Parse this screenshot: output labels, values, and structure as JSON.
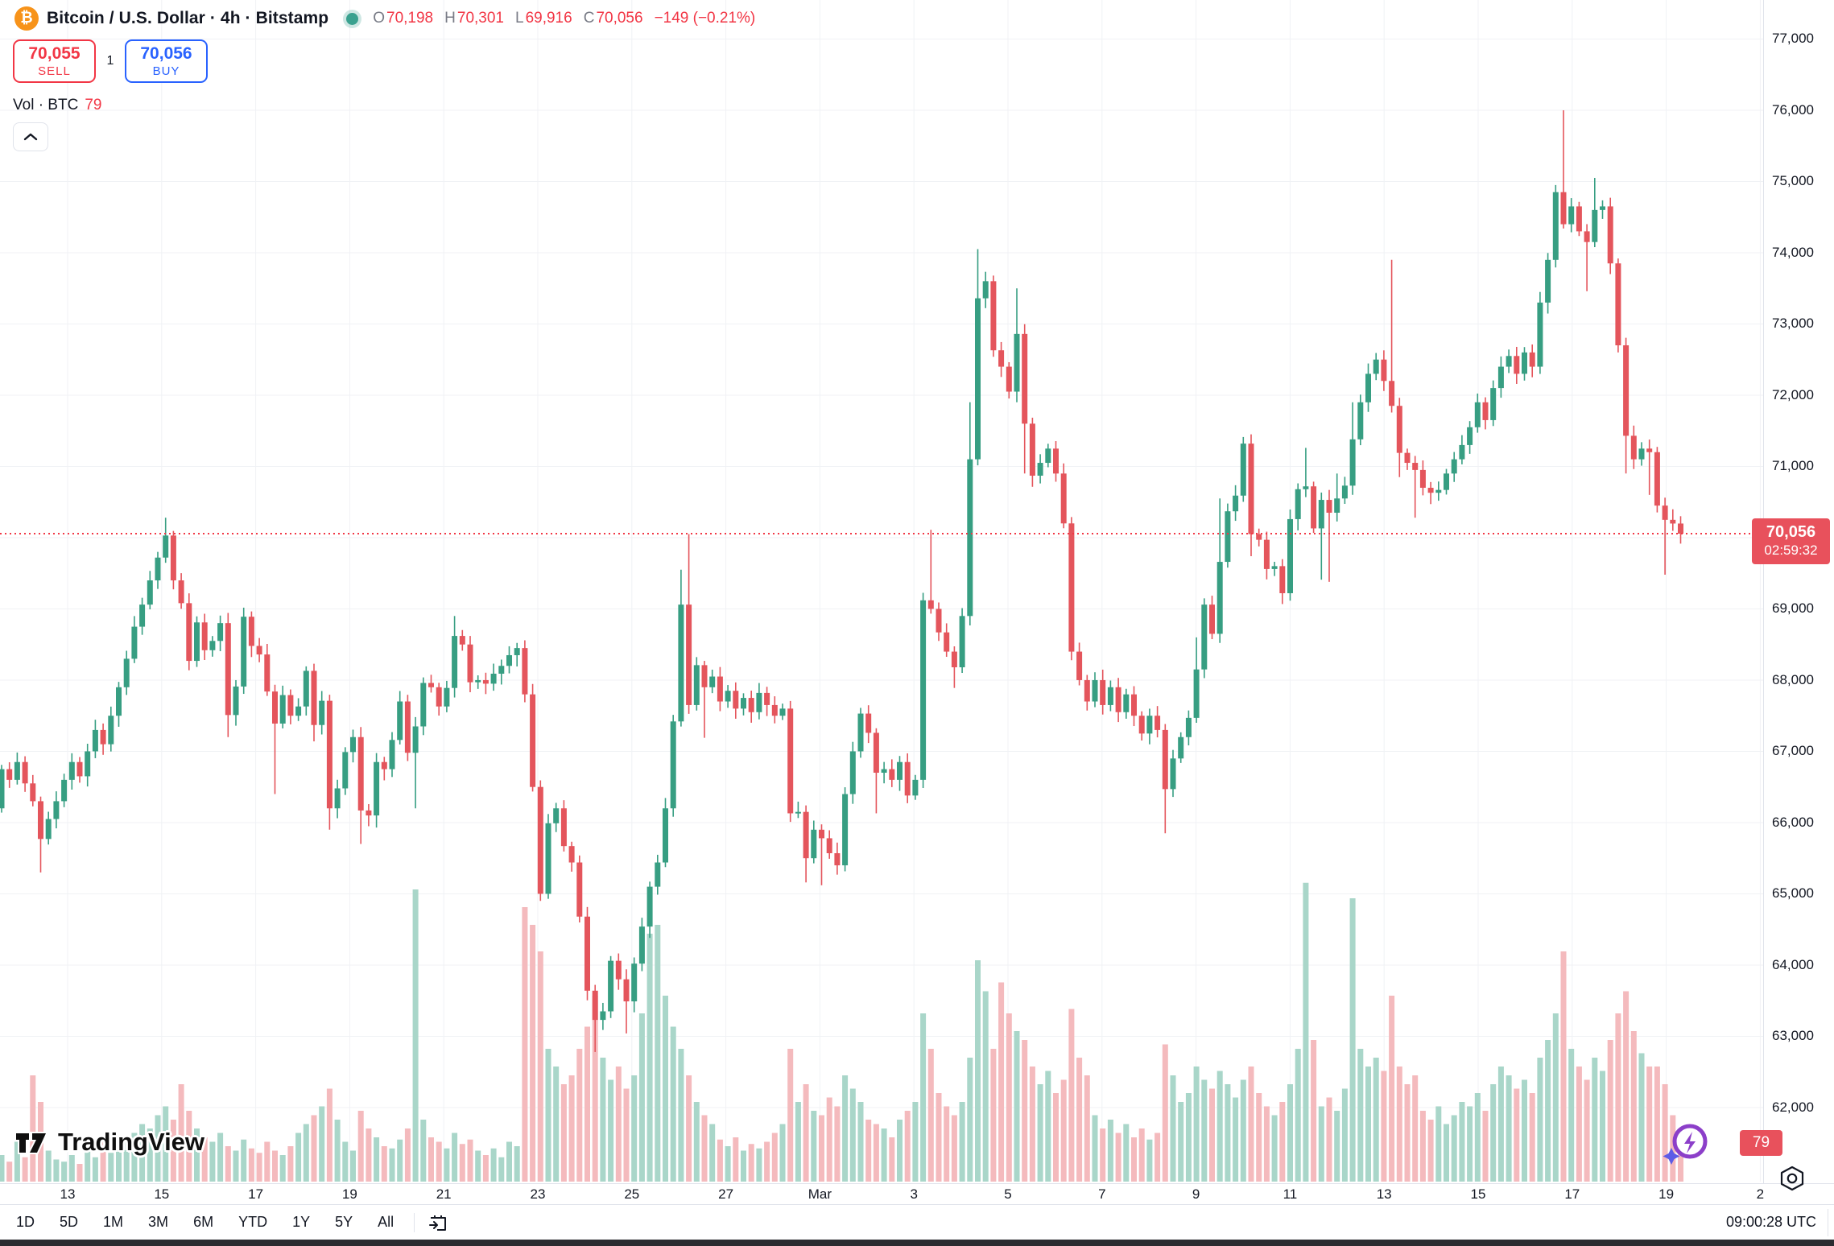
{
  "header": {
    "symbol": "Bitcoin / U.S. Dollar · 4h · Bitstamp",
    "coin_glyph": "₿",
    "o_label": "O",
    "o": "70,198",
    "h_label": "H",
    "h": "70,301",
    "l_label": "L",
    "l": "69,916",
    "c_label": "C",
    "c": "70,056",
    "change": "−149 (−0.21%)"
  },
  "trade": {
    "sell_price": "70,055",
    "sell_label": "SELL",
    "spread": "1",
    "buy_price": "70,056",
    "buy_label": "BUY"
  },
  "volume_row": {
    "label": "Vol · BTC",
    "value": "79"
  },
  "price_label": {
    "price": "70,056",
    "countdown": "02:59:32"
  },
  "vol_label": {
    "value": "79"
  },
  "toolbar": {
    "ranges": [
      "1D",
      "5D",
      "1M",
      "3M",
      "6M",
      "YTD",
      "1Y",
      "5Y",
      "All"
    ],
    "time": "09:00:28 UTC"
  },
  "watermark": "TradingView",
  "colors": {
    "up": "#379E82",
    "down": "#E4555C",
    "vol_up": "#A9D6C9",
    "vol_down": "#F4BABD",
    "price_line": "#F23645",
    "label_bg": "#E8515C",
    "grid": "#F0F2F5",
    "axis_text": "#131722",
    "accent_sell": "#F23645",
    "accent_buy": "#2962FF",
    "status_dot": "#3AA18F",
    "coin_bg": "#F7931A"
  },
  "chart_data": {
    "type": "candlestick",
    "title": "Bitcoin / U.S. Dollar",
    "interval": "4h",
    "exchange": "Bitstamp",
    "current": {
      "open": 70198,
      "high": 70301,
      "low": 69916,
      "close": 70056,
      "change": -149,
      "change_pct": -0.21,
      "volume_btc": 79
    },
    "ylim": [
      62000,
      77300
    ],
    "price_ticks": [
      {
        "value": 77000,
        "label": "77,000",
        "show": true
      },
      {
        "value": 76000,
        "label": "76,000",
        "show": true
      },
      {
        "value": 75000,
        "label": "75,000",
        "show": true
      },
      {
        "value": 74000,
        "label": "74,000",
        "show": true
      },
      {
        "value": 73000,
        "label": "73,000",
        "show": true
      },
      {
        "value": 72000,
        "label": "72,000",
        "show": true
      },
      {
        "value": 71000,
        "label": "71,000",
        "show": true
      },
      {
        "value": 70000,
        "label": "70,000",
        "show": false
      },
      {
        "value": 69000,
        "label": "69,000",
        "show": true
      },
      {
        "value": 68000,
        "label": "68,000",
        "show": true
      },
      {
        "value": 67000,
        "label": "67,000",
        "show": true
      },
      {
        "value": 66000,
        "label": "66,000",
        "show": true
      },
      {
        "value": 65000,
        "label": "65,000",
        "show": true
      },
      {
        "value": 64000,
        "label": "64,000",
        "show": true
      },
      {
        "value": 63000,
        "label": "63,000",
        "show": true
      },
      {
        "value": 62000,
        "label": "62,000",
        "show": true
      }
    ],
    "date_ticks": [
      "13",
      "15",
      "17",
      "19",
      "21",
      "23",
      "25",
      "27",
      "Mar",
      "3",
      "5",
      "7",
      "9",
      "11",
      "13",
      "15",
      "17",
      "19",
      "2"
    ],
    "open0": 66200,
    "closes": [
      66750,
      66600,
      66850,
      66550,
      66300,
      65770,
      66050,
      66300,
      66600,
      66850,
      66650,
      67000,
      67300,
      67100,
      67500,
      67900,
      68300,
      68750,
      69060,
      69400,
      69720,
      70030,
      69400,
      69080,
      68270,
      68810,
      68420,
      68550,
      68800,
      67510,
      67910,
      68890,
      68480,
      68360,
      67840,
      67390,
      67790,
      67500,
      67630,
      68130,
      67370,
      67710,
      66200,
      66480,
      66990,
      67200,
      66170,
      66100,
      66850,
      66750,
      67160,
      67700,
      66980,
      67350,
      67960,
      67900,
      67630,
      67890,
      68620,
      68500,
      67970,
      68000,
      67950,
      68090,
      68200,
      68350,
      68450,
      67800,
      66500,
      65000,
      65990,
      66200,
      65670,
      65440,
      64680,
      63640,
      63230,
      63350,
      64060,
      63800,
      63490,
      64020,
      64540,
      65100,
      65440,
      66200,
      67420,
      69060,
      67650,
      68210,
      67900,
      68050,
      67700,
      67850,
      67600,
      67750,
      67550,
      67820,
      67650,
      67500,
      67600,
      66130,
      66150,
      65500,
      65900,
      65780,
      65570,
      65400,
      66400,
      67000,
      67530,
      67260,
      66700,
      66750,
      66600,
      66850,
      66380,
      66600,
      69120,
      69000,
      68670,
      68400,
      68180,
      68900,
      71100,
      73360,
      73600,
      72630,
      72400,
      72050,
      72860,
      71600,
      70870,
      71050,
      71250,
      70900,
      70200,
      68400,
      68000,
      67700,
      68000,
      67650,
      67900,
      67550,
      67800,
      67500,
      67250,
      67500,
      67300,
      66470,
      66900,
      67200,
      67470,
      68150,
      69060,
      68650,
      69660,
      70370,
      70590,
      71320,
      70050,
      69970,
      69560,
      69600,
      69220,
      70260,
      70680,
      70720,
      70130,
      70530,
      70350,
      70550,
      70730,
      71380,
      71900,
      72300,
      72500,
      72200,
      71850,
      71190,
      71050,
      70950,
      70700,
      70630,
      70670,
      70900,
      71100,
      71300,
      71550,
      71900,
      71650,
      72100,
      72400,
      72550,
      72300,
      72600,
      72400,
      73300,
      73900,
      74850,
      74400,
      74650,
      74300,
      74150,
      74600,
      74650,
      73850,
      72700,
      71430,
      71100,
      71250,
      71200,
      70450,
      70250,
      70198,
      70056
    ],
    "volumes": [
      60,
      45,
      90,
      55,
      240,
      180,
      70,
      50,
      45,
      60,
      40,
      75,
      55,
      90,
      65,
      80,
      95,
      110,
      130,
      120,
      150,
      170,
      140,
      220,
      160,
      120,
      100,
      90,
      110,
      80,
      70,
      95,
      75,
      65,
      90,
      70,
      60,
      80,
      110,
      130,
      150,
      170,
      210,
      140,
      90,
      70,
      160,
      120,
      100,
      80,
      75,
      95,
      120,
      660,
      140,
      100,
      90,
      75,
      110,
      85,
      95,
      70,
      60,
      75,
      55,
      90,
      80,
      620,
      580,
      520,
      300,
      260,
      220,
      240,
      300,
      350,
      420,
      280,
      230,
      260,
      210,
      240,
      380,
      560,
      580,
      420,
      350,
      300,
      240,
      180,
      150,
      130,
      95,
      80,
      100,
      70,
      85,
      75,
      90,
      110,
      130,
      300,
      180,
      220,
      160,
      150,
      190,
      170,
      240,
      210,
      180,
      140,
      130,
      120,
      100,
      140,
      160,
      180,
      380,
      300,
      200,
      170,
      150,
      180,
      280,
      500,
      430,
      300,
      450,
      380,
      340,
      320,
      260,
      220,
      250,
      200,
      230,
      390,
      280,
      240,
      150,
      120,
      140,
      110,
      130,
      100,
      120,
      95,
      110,
      310,
      240,
      180,
      200,
      260,
      230,
      210,
      250,
      220,
      190,
      230,
      260,
      200,
      170,
      150,
      180,
      220,
      300,
      675,
      320,
      170,
      190,
      160,
      210,
      640,
      300,
      260,
      280,
      250,
      420,
      260,
      220,
      240,
      160,
      140,
      170,
      130,
      150,
      180,
      170,
      200,
      160,
      220,
      260,
      240,
      210,
      230,
      200,
      280,
      320,
      380,
      520,
      300,
      260,
      230,
      280,
      250,
      320,
      380,
      430,
      340,
      290,
      260,
      260,
      220,
      150,
      79
    ],
    "wick_overrides": {
      "5": [
        null,
        65300
      ],
      "21": [
        70280,
        null
      ],
      "29": [
        null,
        67200
      ],
      "35": [
        null,
        66400
      ],
      "40": [
        null,
        67140
      ],
      "42": [
        null,
        65900
      ],
      "46": [
        null,
        65700
      ],
      "48": [
        null,
        65930
      ],
      "53": [
        null,
        66200
      ],
      "58": [
        68900,
        null
      ],
      "69": [
        null,
        64900
      ],
      "76": [
        null,
        62780
      ],
      "80": [
        null,
        63040
      ],
      "87": [
        69550,
        null
      ],
      "88": [
        70050,
        null
      ],
      "90": [
        null,
        67190
      ],
      "101": [
        null,
        66010
      ],
      "103": [
        null,
        65160
      ],
      "105": [
        null,
        65120
      ],
      "112": [
        null,
        66130
      ],
      "119": [
        70110,
        null
      ],
      "122": [
        null,
        67890
      ],
      "124": [
        71900,
        null
      ],
      "125": [
        74050,
        null
      ],
      "130": [
        73500,
        null
      ],
      "131": [
        null,
        70900
      ],
      "149": [
        null,
        65850
      ],
      "153": [
        68600,
        null
      ],
      "156": [
        70550,
        null
      ],
      "160": [
        null,
        69740
      ],
      "167": [
        71260,
        null
      ],
      "169": [
        null,
        69410
      ],
      "170": [
        null,
        69380
      ],
      "171": [
        70900,
        null
      ],
      "173": [
        71900,
        null
      ],
      "178": [
        73900,
        null
      ],
      "179": [
        null,
        70850
      ],
      "181": [
        null,
        70280
      ],
      "199": [
        74950,
        null
      ],
      "200": [
        76000,
        null
      ],
      "203": [
        null,
        73460
      ],
      "204": [
        75050,
        null
      ],
      "206": [
        null,
        73700
      ],
      "207": [
        null,
        72600
      ],
      "208": [
        null,
        70900
      ],
      "211": [
        null,
        70600
      ],
      "213": [
        null,
        69480
      ],
      "215": [
        70301,
        69916
      ]
    },
    "price_line_value": 70056,
    "volume_axis_label": 79
  }
}
